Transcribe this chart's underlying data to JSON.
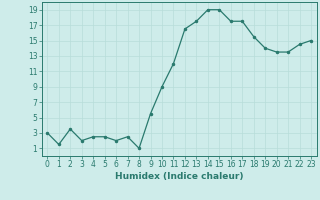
{
  "x": [
    0,
    1,
    2,
    3,
    4,
    5,
    6,
    7,
    8,
    9,
    10,
    11,
    12,
    13,
    14,
    15,
    16,
    17,
    18,
    19,
    20,
    21,
    22,
    23
  ],
  "y": [
    3,
    1.5,
    3.5,
    2,
    2.5,
    2.5,
    2,
    2.5,
    1,
    5.5,
    9,
    12,
    16.5,
    17.5,
    19,
    19,
    17.5,
    17.5,
    15.5,
    14,
    13.5,
    13.5,
    14.5,
    15
  ],
  "line_color": "#2a7a6e",
  "marker_color": "#2a7a6e",
  "bg_color": "#ceecea",
  "grid_color": "#b8ddd9",
  "xlabel": "Humidex (Indice chaleur)",
  "xlim": [
    -0.5,
    23.5
  ],
  "ylim": [
    0,
    20
  ],
  "yticks": [
    1,
    3,
    5,
    7,
    9,
    11,
    13,
    15,
    17,
    19
  ],
  "xticks": [
    0,
    1,
    2,
    3,
    4,
    5,
    6,
    7,
    8,
    9,
    10,
    11,
    12,
    13,
    14,
    15,
    16,
    17,
    18,
    19,
    20,
    21,
    22,
    23
  ],
  "tick_fontsize": 5.5,
  "xlabel_fontsize": 6.5
}
